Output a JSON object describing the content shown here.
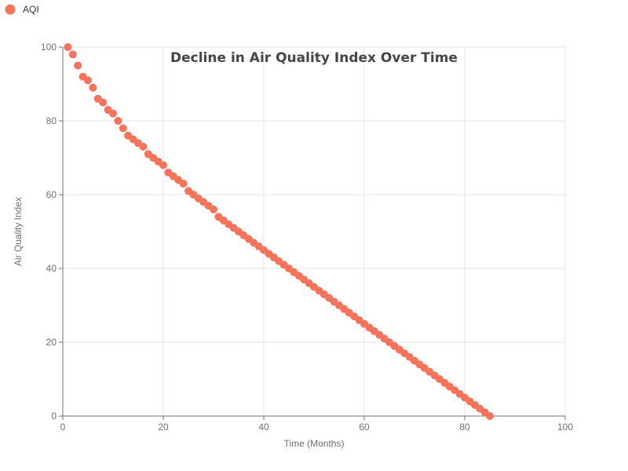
{
  "chart_data": {
    "type": "scatter",
    "title": "Decline in Air Quality Index Over Time",
    "xlabel": "Time (Months)",
    "ylabel": "Air Quality Index",
    "xlim": [
      0,
      100
    ],
    "ylim": [
      0,
      100
    ],
    "xticks": [
      "0",
      "20",
      "40",
      "60",
      "80",
      "100"
    ],
    "yticks": [
      "0",
      "20",
      "40",
      "60",
      "80",
      "100"
    ],
    "grid": true,
    "legend_position": "top-left",
    "series": [
      {
        "name": "AQI",
        "color": "#f4735a",
        "x": [
          1,
          2,
          3,
          4,
          5,
          6,
          7,
          8,
          9,
          10,
          11,
          12,
          13,
          14,
          15,
          16,
          17,
          18,
          19,
          20,
          21,
          22,
          23,
          24,
          25,
          26,
          27,
          28,
          29,
          30,
          31,
          32,
          33,
          34,
          35,
          36,
          37,
          38,
          39,
          40,
          41,
          42,
          43,
          44,
          45,
          46,
          47,
          48,
          49,
          50,
          51,
          52,
          53,
          54,
          55,
          56,
          57,
          58,
          59,
          60,
          61,
          62,
          63,
          64,
          65,
          66,
          67,
          68,
          69,
          70,
          71,
          72,
          73,
          74,
          75,
          76,
          77,
          78,
          79,
          80,
          81,
          82,
          83,
          84,
          85
        ],
        "y": [
          100,
          98,
          95,
          92,
          91,
          89,
          86,
          85,
          83,
          82,
          80,
          78,
          76,
          75,
          74,
          73,
          71,
          70,
          69,
          68,
          66,
          65,
          64,
          63,
          61,
          60,
          59,
          58,
          57,
          56,
          54,
          53,
          52,
          51,
          50,
          49,
          48,
          47,
          46,
          45,
          44,
          43,
          42,
          41,
          40,
          39,
          38,
          37,
          36,
          35,
          34,
          33,
          32,
          31,
          30,
          29,
          28,
          27,
          26,
          25,
          24,
          23,
          22,
          21,
          20,
          19,
          18,
          17,
          16,
          15,
          14,
          13,
          12,
          11,
          10,
          9,
          8,
          7,
          6,
          5,
          4,
          3,
          2,
          1,
          0
        ]
      }
    ]
  }
}
